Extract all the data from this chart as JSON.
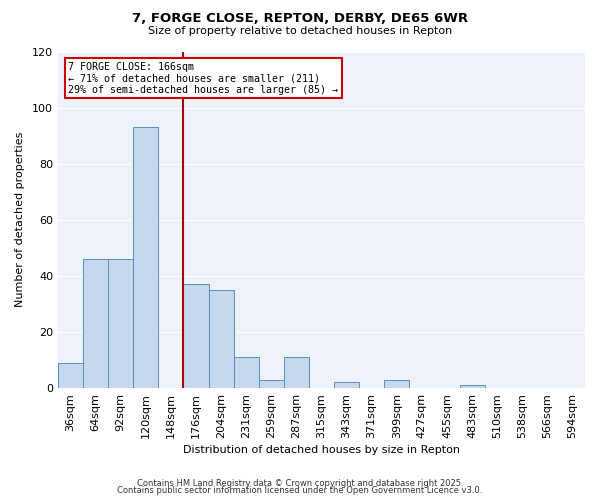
{
  "title": "7, FORGE CLOSE, REPTON, DERBY, DE65 6WR",
  "subtitle": "Size of property relative to detached houses in Repton",
  "xlabel": "Distribution of detached houses by size in Repton",
  "ylabel": "Number of detached properties",
  "categories": [
    "36sqm",
    "64sqm",
    "92sqm",
    "120sqm",
    "148sqm",
    "176sqm",
    "204sqm",
    "231sqm",
    "259sqm",
    "287sqm",
    "315sqm",
    "343sqm",
    "371sqm",
    "399sqm",
    "427sqm",
    "455sqm",
    "483sqm",
    "510sqm",
    "538sqm",
    "566sqm",
    "594sqm"
  ],
  "values": [
    9,
    46,
    46,
    93,
    0,
    37,
    35,
    11,
    3,
    11,
    0,
    2,
    0,
    3,
    0,
    0,
    1,
    0,
    0,
    0,
    0
  ],
  "bar_color": "#c5d8ee",
  "bar_edge_color": "#5b8dc4",
  "background_color": "#eef2fb",
  "marker_label": "7 FORGE CLOSE: 166sqm",
  "annotation_line1": "← 71% of detached houses are smaller (211)",
  "annotation_line2": "29% of semi-detached houses are larger (85) →",
  "marker_color": "#aa0000",
  "annotation_box_edgecolor": "#cc0000",
  "ylim": [
    0,
    120
  ],
  "yticks": [
    0,
    20,
    40,
    60,
    80,
    100,
    120
  ],
  "footnote1": "Contains HM Land Registry data © Crown copyright and database right 2025.",
  "footnote2": "Contains public sector information licensed under the Open Government Licence v3.0.",
  "marker_bar_index": 5,
  "n_bars": 21
}
